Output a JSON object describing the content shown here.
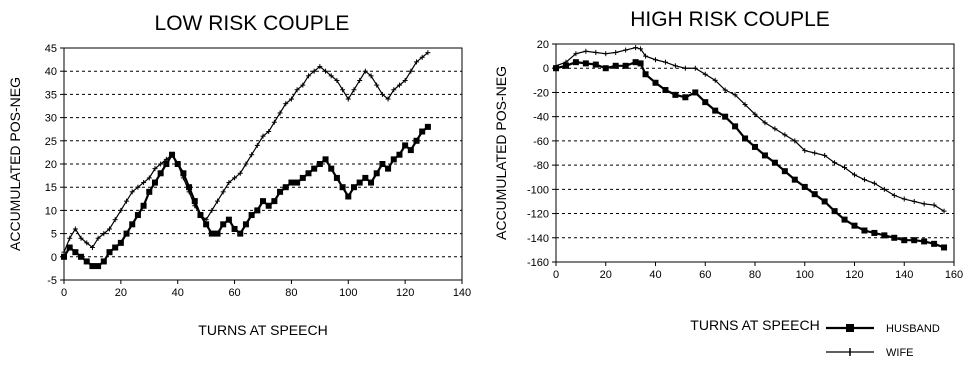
{
  "chart_data": [
    {
      "type": "line",
      "title": "LOW RISK COUPLE",
      "xlabel": "TURNS AT SPEECH",
      "ylabel": "ACCUMULATED POS-NEG",
      "xlim": [
        0,
        140
      ],
      "ylim": [
        -5,
        45
      ],
      "xticks": [
        0,
        20,
        40,
        60,
        80,
        100,
        120,
        140
      ],
      "yticks": [
        -5,
        0,
        5,
        10,
        15,
        20,
        25,
        30,
        35,
        40,
        45
      ],
      "grid": "horizontal dashed",
      "series": [
        {
          "name": "HUSBAND",
          "x": [
            0,
            2,
            4,
            6,
            8,
            10,
            12,
            14,
            16,
            18,
            20,
            22,
            24,
            26,
            28,
            30,
            32,
            34,
            36,
            38,
            40,
            42,
            44,
            46,
            48,
            50,
            52,
            54,
            56,
            58,
            60,
            62,
            64,
            66,
            68,
            70,
            72,
            74,
            76,
            78,
            80,
            82,
            84,
            86,
            88,
            90,
            92,
            94,
            96,
            98,
            100,
            102,
            104,
            106,
            108,
            110,
            112,
            114,
            116,
            118,
            120,
            122,
            124,
            126,
            128
          ],
          "values": [
            0,
            2,
            1,
            0,
            -1,
            -2,
            -2,
            -1,
            1,
            2,
            3,
            5,
            7,
            9,
            11,
            14,
            16,
            18,
            20,
            22,
            20,
            18,
            15,
            12,
            9,
            7,
            5,
            5,
            7,
            8,
            6,
            5,
            7,
            9,
            10,
            12,
            11,
            12,
            14,
            15,
            16,
            16,
            17,
            18,
            19,
            20,
            21,
            19,
            17,
            15,
            13,
            15,
            16,
            17,
            16,
            18,
            20,
            19,
            21,
            22,
            24,
            23,
            25,
            27,
            28
          ]
        },
        {
          "name": "WIFE",
          "x": [
            0,
            2,
            4,
            6,
            8,
            10,
            12,
            14,
            16,
            18,
            20,
            22,
            24,
            26,
            28,
            30,
            32,
            34,
            36,
            38,
            40,
            42,
            44,
            46,
            48,
            50,
            52,
            54,
            56,
            58,
            60,
            62,
            64,
            66,
            68,
            70,
            72,
            74,
            76,
            78,
            80,
            82,
            84,
            86,
            88,
            90,
            92,
            94,
            96,
            98,
            100,
            102,
            104,
            106,
            108,
            110,
            112,
            114,
            116,
            118,
            120,
            122,
            124,
            126,
            128
          ],
          "values": [
            1,
            4,
            6,
            4,
            3,
            2,
            4,
            5,
            6,
            8,
            10,
            12,
            14,
            15,
            16,
            17,
            19,
            20,
            21,
            22,
            20,
            17,
            14,
            11,
            9,
            8,
            10,
            12,
            14,
            16,
            17,
            18,
            20,
            22,
            24,
            26,
            27,
            29,
            31,
            33,
            34,
            36,
            37,
            39,
            40,
            41,
            40,
            39,
            38,
            36,
            34,
            36,
            38,
            40,
            39,
            37,
            35,
            34,
            36,
            37,
            38,
            40,
            42,
            43,
            44
          ]
        }
      ]
    },
    {
      "type": "line",
      "title": "HIGH RISK COUPLE",
      "xlabel": "TURNS AT SPEECH",
      "ylabel": "ACCUMULATED POS-NEG",
      "xlim": [
        0,
        160
      ],
      "ylim": [
        -160,
        20
      ],
      "xticks": [
        0,
        20,
        40,
        60,
        80,
        100,
        120,
        140,
        160
      ],
      "yticks": [
        -160,
        -140,
        -120,
        -100,
        -80,
        -60,
        -40,
        -20,
        0,
        20
      ],
      "grid": "horizontal dashed",
      "series": [
        {
          "name": "HUSBAND",
          "x": [
            0,
            4,
            8,
            12,
            16,
            20,
            24,
            28,
            32,
            34,
            36,
            40,
            44,
            48,
            52,
            56,
            60,
            64,
            68,
            72,
            76,
            80,
            84,
            88,
            92,
            96,
            100,
            104,
            108,
            112,
            116,
            120,
            124,
            128,
            132,
            136,
            140,
            144,
            148,
            152,
            156
          ],
          "values": [
            0,
            2,
            5,
            4,
            3,
            0,
            2,
            2,
            5,
            4,
            -5,
            -12,
            -18,
            -22,
            -24,
            -20,
            -28,
            -35,
            -40,
            -48,
            -58,
            -65,
            -72,
            -78,
            -85,
            -92,
            -98,
            -104,
            -110,
            -118,
            -125,
            -130,
            -134,
            -136,
            -138,
            -140,
            -142,
            -142,
            -143,
            -145,
            -148
          ]
        },
        {
          "name": "WIFE",
          "x": [
            0,
            4,
            8,
            12,
            16,
            20,
            24,
            28,
            32,
            34,
            36,
            40,
            44,
            48,
            52,
            56,
            60,
            64,
            68,
            72,
            76,
            80,
            84,
            88,
            92,
            96,
            100,
            104,
            108,
            112,
            116,
            120,
            124,
            128,
            132,
            136,
            140,
            144,
            148,
            152,
            156
          ],
          "values": [
            2,
            5,
            12,
            14,
            13,
            12,
            13,
            15,
            17,
            16,
            10,
            7,
            5,
            2,
            0,
            0,
            -5,
            -10,
            -18,
            -22,
            -30,
            -38,
            -45,
            -50,
            -55,
            -60,
            -68,
            -70,
            -72,
            -78,
            -82,
            -88,
            -92,
            -95,
            -100,
            -105,
            -108,
            -110,
            -112,
            -113,
            -118
          ]
        }
      ]
    }
  ],
  "legend": {
    "position": "bottom-right",
    "items": [
      {
        "label": "HUSBAND",
        "marker": "square"
      },
      {
        "label": "WIFE",
        "marker": "plus"
      }
    ]
  }
}
